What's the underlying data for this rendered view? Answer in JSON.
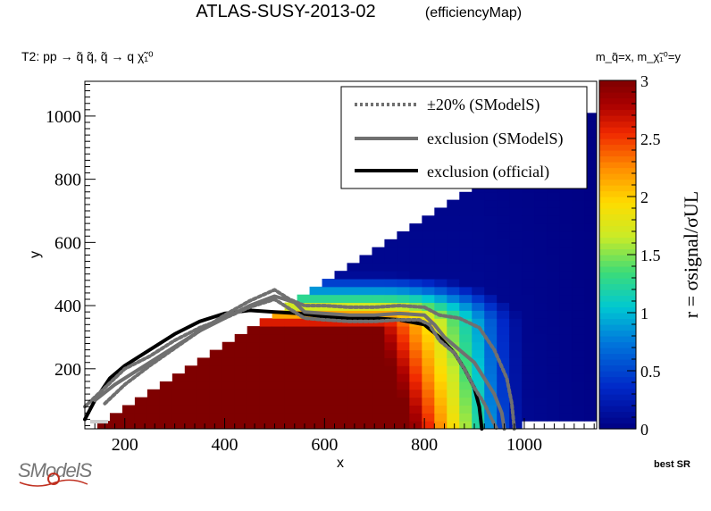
{
  "chart_data": {
    "type": "heatmap",
    "title": "ATLAS-SUSY-2013-02",
    "subtitle": "(efficiencyMap)",
    "process_label": "T2: pp → q̃ q̃, q̃ → q χ̃₁⁰",
    "mass_label": "m_q̃=x, m_χ̃₁⁰=y",
    "xlabel": "x",
    "ylabel": "y",
    "zlabel": "r = σsignal/σUL",
    "corner_label": "best SR",
    "logo_text": "SModelS",
    "xlim": [
      120,
      1145
    ],
    "ylim": [
      10,
      1110
    ],
    "zlim": [
      0,
      3
    ],
    "x_ticks": [
      200,
      400,
      600,
      800,
      1000
    ],
    "y_ticks": [
      200,
      400,
      600,
      800,
      1000
    ],
    "z_ticks": [
      0,
      0.5,
      1,
      1.5,
      2,
      2.5,
      3
    ],
    "grid": false,
    "legend_position": "top-right",
    "legend": [
      {
        "label": "±20% (SModelS)",
        "style": "dotted",
        "color": "#707070"
      },
      {
        "label": "exclusion (SModelS)",
        "style": "solid",
        "color": "#707070"
      },
      {
        "label": "exclusion (official)",
        "style": "solid",
        "color": "#000000"
      }
    ],
    "colors": {
      "high": "#7f0000",
      "white_band": "#ffffff",
      "legend_bg": "#ffffff"
    },
    "series": [
      {
        "name": "exclusion (official)",
        "x": [
          120,
          140,
          170,
          200,
          250,
          300,
          350,
          400,
          450,
          500,
          550,
          600,
          650,
          700,
          750,
          800,
          830,
          860,
          880,
          900,
          910,
          915
        ],
        "y": [
          40,
          100,
          170,
          210,
          260,
          310,
          350,
          375,
          385,
          380,
          375,
          365,
          360,
          360,
          355,
          340,
          300,
          250,
          200,
          140,
          80,
          10
        ]
      },
      {
        "name": "exclusion (SModelS)",
        "x": [
          140,
          180,
          250,
          300,
          350,
          400,
          450,
          500,
          540,
          560,
          600,
          650,
          700,
          750,
          800,
          820,
          840,
          870,
          900,
          920,
          940,
          955,
          960
        ],
        "y": [
          100,
          150,
          220,
          270,
          320,
          360,
          400,
          430,
          410,
          380,
          375,
          370,
          370,
          375,
          370,
          340,
          300,
          260,
          220,
          170,
          120,
          60,
          10
        ]
      },
      {
        "name": "+20% (SModelS)",
        "x": [
          160,
          200,
          250,
          300,
          350,
          400,
          450,
          500,
          530,
          560,
          600,
          650,
          700,
          750,
          800,
          830,
          870,
          910,
          940,
          965,
          975,
          980
        ],
        "y": [
          90,
          150,
          210,
          265,
          320,
          370,
          415,
          450,
          420,
          400,
          400,
          395,
          395,
          400,
          395,
          370,
          360,
          330,
          260,
          170,
          90,
          10
        ]
      },
      {
        "name": "-20% (SModelS)",
        "x": [
          120,
          160,
          200,
          250,
          300,
          350,
          400,
          450,
          500,
          540,
          560,
          600,
          650,
          700,
          750,
          790,
          810,
          830,
          860,
          880,
          900,
          920,
          935,
          945
        ],
        "y": [
          80,
          140,
          200,
          240,
          290,
          330,
          360,
          395,
          420,
          380,
          360,
          355,
          350,
          350,
          355,
          355,
          340,
          290,
          250,
          200,
          140,
          90,
          40,
          10
        ]
      }
    ]
  }
}
